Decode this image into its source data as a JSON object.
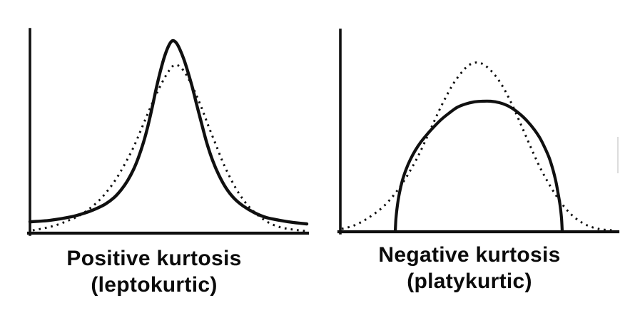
{
  "palette": {
    "ink": "#101010",
    "background": "#ffffff",
    "scan_artifact": "#dcdcdc"
  },
  "figure": {
    "panels": [
      {
        "id": "leptokurtic",
        "caption": {
          "line1": "Positive kurtosis",
          "line2": "(leptokurtic)"
        }
      },
      {
        "id": "platykurtic",
        "caption": {
          "line1": "Negative kurtosis",
          "line2": "(platykurtic)"
        }
      }
    ]
  },
  "chart_data": [
    {
      "type": "line",
      "title": "Positive kurtosis (leptokurtic)",
      "xlabel": "",
      "ylabel": "",
      "axis_ticks": "none",
      "legend": "none",
      "axes": [
        {
          "name": "left-y-axis",
          "width": 3.6,
          "points": [
            [
              42,
              41
            ],
            [
              42,
              329
            ]
          ]
        },
        {
          "name": "left-x-axis",
          "width": 4.2,
          "points": [
            [
              40,
              327
            ],
            [
              431,
              327
            ]
          ]
        }
      ],
      "series": [
        {
          "name": "leptokurtic-distribution",
          "style": "solid",
          "width": 4.4,
          "points": [
            [
              42,
              311
            ],
            [
              70,
              309
            ],
            [
              100,
              304
            ],
            [
              118,
              299
            ],
            [
              134,
              293
            ],
            [
              148,
              286
            ],
            [
              160,
              277
            ],
            [
              170,
              266
            ],
            [
              179,
              253
            ],
            [
              187,
              238
            ],
            [
              194,
              221
            ],
            [
              201,
              200
            ],
            [
              207,
              178
            ],
            [
              213,
              152
            ],
            [
              219,
              124
            ],
            [
              225,
              99
            ],
            [
              231,
              78
            ],
            [
              237,
              63
            ],
            [
              242,
              57
            ],
            [
              247,
              60
            ],
            [
              252,
              69
            ],
            [
              258,
              84
            ],
            [
              264,
              103
            ],
            [
              270,
              124
            ],
            [
              276,
              148
            ],
            [
              283,
              175
            ],
            [
              290,
              201
            ],
            [
              298,
              225
            ],
            [
              307,
              246
            ],
            [
              317,
              264
            ],
            [
              328,
              278
            ],
            [
              341,
              289
            ],
            [
              356,
              298
            ],
            [
              373,
              305
            ],
            [
              392,
              309
            ],
            [
              411,
              312
            ],
            [
              430,
              314
            ]
          ]
        },
        {
          "name": "normal-reference-left",
          "style": "dotted",
          "width": 3,
          "points": [
            [
              46,
              323
            ],
            [
              62,
              320
            ],
            [
              78,
              316
            ],
            [
              94,
              310
            ],
            [
              110,
              303
            ],
            [
              125,
              293
            ],
            [
              139,
              281
            ],
            [
              152,
              266
            ],
            [
              164,
              249
            ],
            [
              175,
              230
            ],
            [
              186,
              209
            ],
            [
              196,
              186
            ],
            [
              206,
              162
            ],
            [
              216,
              139
            ],
            [
              226,
              118
            ],
            [
              235,
              102
            ],
            [
              243,
              92
            ],
            [
              250,
              92
            ],
            [
              258,
              100
            ],
            [
              266,
              114
            ],
            [
              275,
              133
            ],
            [
              284,
              155
            ],
            [
              293,
              179
            ],
            [
              303,
              204
            ],
            [
              313,
              229
            ],
            [
              324,
              252
            ],
            [
              336,
              273
            ],
            [
              349,
              290
            ],
            [
              363,
              303
            ],
            [
              378,
              313
            ],
            [
              394,
              319
            ],
            [
              411,
              322
            ],
            [
              428,
              324
            ]
          ]
        }
      ]
    },
    {
      "type": "line",
      "title": "Negative kurtosis (platykurtic)",
      "xlabel": "",
      "ylabel": "",
      "axis_ticks": "none",
      "legend": "none",
      "axes": [
        {
          "name": "right-y-axis",
          "width": 3.6,
          "points": [
            [
              477,
              42
            ],
            [
              477,
              327
            ]
          ]
        },
        {
          "name": "right-x-axis",
          "width": 4.2,
          "points": [
            [
              475,
              325
            ],
            [
              866,
              325
            ]
          ]
        },
        {
          "name": "scan-edge-mark",
          "width": 2,
          "color": "#dcdcdc",
          "points": [
            [
              866,
              193
            ],
            [
              866,
              242
            ]
          ]
        }
      ],
      "series": [
        {
          "name": "platykurtic-distribution",
          "style": "solid",
          "width": 4.2,
          "points": [
            [
              554,
              324
            ],
            [
              555,
              306
            ],
            [
              557,
              288
            ],
            [
              560,
              270
            ],
            [
              564,
              253
            ],
            [
              569,
              238
            ],
            [
              575,
              224
            ],
            [
              582,
              211
            ],
            [
              590,
              199
            ],
            [
              599,
              188
            ],
            [
              608,
              178
            ],
            [
              618,
              168
            ],
            [
              629,
              159
            ],
            [
              640,
              151
            ],
            [
              652,
              146
            ],
            [
              664,
              143
            ],
            [
              676,
              142
            ],
            [
              688,
              142
            ],
            [
              700,
              144
            ],
            [
              711,
              148
            ],
            [
              721,
              154
            ],
            [
              731,
              162
            ],
            [
              740,
              171
            ],
            [
              749,
              182
            ],
            [
              757,
              194
            ],
            [
              764,
              208
            ],
            [
              770,
              222
            ],
            [
              775,
              238
            ],
            [
              779,
              254
            ],
            [
              782,
              270
            ],
            [
              785,
              288
            ],
            [
              787,
              306
            ],
            [
              788,
              324
            ]
          ]
        },
        {
          "name": "normal-reference-right",
          "style": "dotted",
          "width": 3,
          "points": [
            [
              479,
              321
            ],
            [
              494,
              317
            ],
            [
              509,
              310
            ],
            [
              523,
              301
            ],
            [
              537,
              290
            ],
            [
              550,
              276
            ],
            [
              562,
              260
            ],
            [
              574,
              241
            ],
            [
              585,
              221
            ],
            [
              595,
              200
            ],
            [
              605,
              178
            ],
            [
              615,
              156
            ],
            [
              625,
              136
            ],
            [
              635,
              118
            ],
            [
              645,
              104
            ],
            [
              655,
              93
            ],
            [
              665,
              88
            ],
            [
              675,
              89
            ],
            [
              685,
              96
            ],
            [
              695,
              107
            ],
            [
              705,
              122
            ],
            [
              715,
              141
            ],
            [
              725,
              163
            ],
            [
              735,
              186
            ],
            [
              745,
              209
            ],
            [
              755,
              231
            ],
            [
              766,
              252
            ],
            [
              778,
              272
            ],
            [
              790,
              289
            ],
            [
              803,
              303
            ],
            [
              817,
              313
            ],
            [
              831,
              319
            ],
            [
              845,
              322
            ],
            [
              860,
              323
            ]
          ]
        }
      ]
    }
  ]
}
